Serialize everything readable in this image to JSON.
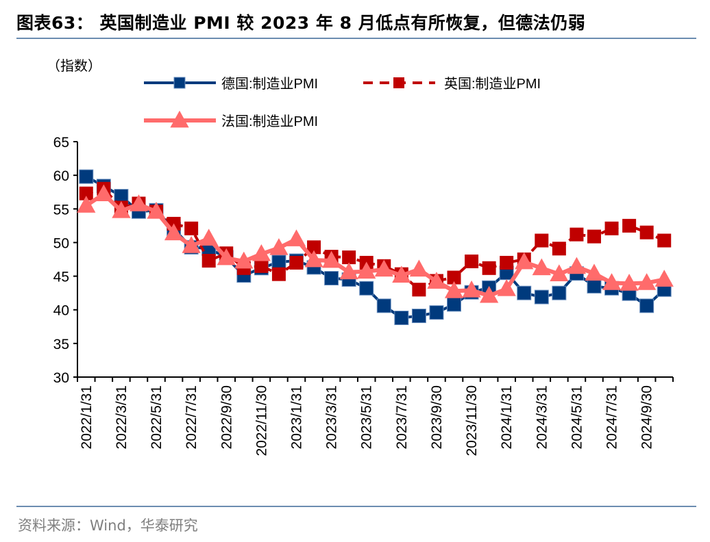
{
  "title": "图表63：  英国制造业 PMI 较 2023 年 8 月低点有所恢复，但德法仍弱",
  "source": "资料来源：Wind，华泰研究",
  "chart_data": {
    "type": "line",
    "title": "英国制造业 PMI 较 2023 年 8 月低点有所恢复，但德法仍弱",
    "ylabel": "（指数）",
    "xlabel": "",
    "ylim": [
      30,
      65
    ],
    "yticks": [
      "30",
      "35",
      "40",
      "45",
      "50",
      "55",
      "60",
      "65"
    ],
    "grid": false,
    "legend_position": "top",
    "x": [
      "2022/1/31",
      "2022/2/28",
      "2022/3/31",
      "2022/4/30",
      "2022/5/31",
      "2022/6/30",
      "2022/7/31",
      "2022/8/31",
      "2022/9/30",
      "2022/10/31",
      "2022/11/30",
      "2022/12/31",
      "2023/1/31",
      "2023/2/28",
      "2023/3/31",
      "2023/4/30",
      "2023/5/31",
      "2023/6/30",
      "2023/7/31",
      "2023/8/31",
      "2023/9/30",
      "2023/10/31",
      "2023/11/30",
      "2023/12/31",
      "2024/1/31",
      "2024/2/29",
      "2024/3/31",
      "2024/4/30",
      "2024/5/31",
      "2024/6/30",
      "2024/7/31",
      "2024/8/31",
      "2024/9/30",
      "2024/10/31"
    ],
    "xtick_labels": [
      "2022/1/31",
      "2022/3/31",
      "2022/5/31",
      "2022/7/31",
      "2022/9/30",
      "2022/11/30",
      "2023/1/31",
      "2023/3/31",
      "2023/5/31",
      "2023/7/31",
      "2023/9/30",
      "2023/11/30",
      "2024/1/31",
      "2024/3/31",
      "2024/5/31",
      "2024/7/31",
      "2024/9/30"
    ],
    "series": [
      {
        "name": "德国:制造业PMI",
        "color": "#003a7d",
        "style": "solid",
        "marker": "square",
        "values": [
          59.8,
          58.4,
          56.9,
          54.6,
          54.8,
          52.0,
          49.3,
          49.1,
          47.8,
          45.1,
          46.2,
          47.1,
          47.3,
          46.3,
          44.7,
          44.5,
          43.2,
          40.6,
          38.8,
          39.1,
          39.6,
          40.8,
          42.6,
          43.3,
          45.5,
          42.5,
          41.9,
          42.5,
          45.4,
          43.5,
          43.2,
          42.4,
          40.6,
          43.0
        ]
      },
      {
        "name": "英国:制造业PMI",
        "color": "#c00000",
        "style": "dashed",
        "marker": "square",
        "values": [
          57.3,
          58.0,
          55.2,
          55.8,
          54.6,
          52.8,
          52.1,
          47.3,
          48.4,
          46.2,
          46.5,
          45.3,
          47.0,
          49.3,
          47.9,
          47.8,
          47.0,
          46.5,
          45.3,
          43.0,
          44.3,
          44.8,
          47.2,
          46.2,
          47.0,
          47.5,
          50.3,
          49.1,
          51.2,
          50.9,
          52.1,
          52.5,
          51.5,
          50.3
        ]
      },
      {
        "name": "法国:制造业PMI",
        "color": "#ff6b6b",
        "style": "solid",
        "marker": "triangle",
        "values": [
          55.5,
          57.2,
          54.7,
          55.7,
          54.6,
          51.4,
          49.5,
          50.6,
          47.7,
          47.2,
          48.3,
          49.2,
          50.5,
          47.4,
          47.3,
          45.6,
          45.7,
          46.0,
          45.1,
          46.0,
          44.2,
          42.8,
          42.9,
          42.1,
          43.1,
          47.1,
          46.2,
          45.3,
          46.4,
          45.4,
          44.0,
          43.9,
          44.0,
          44.5
        ]
      }
    ]
  }
}
